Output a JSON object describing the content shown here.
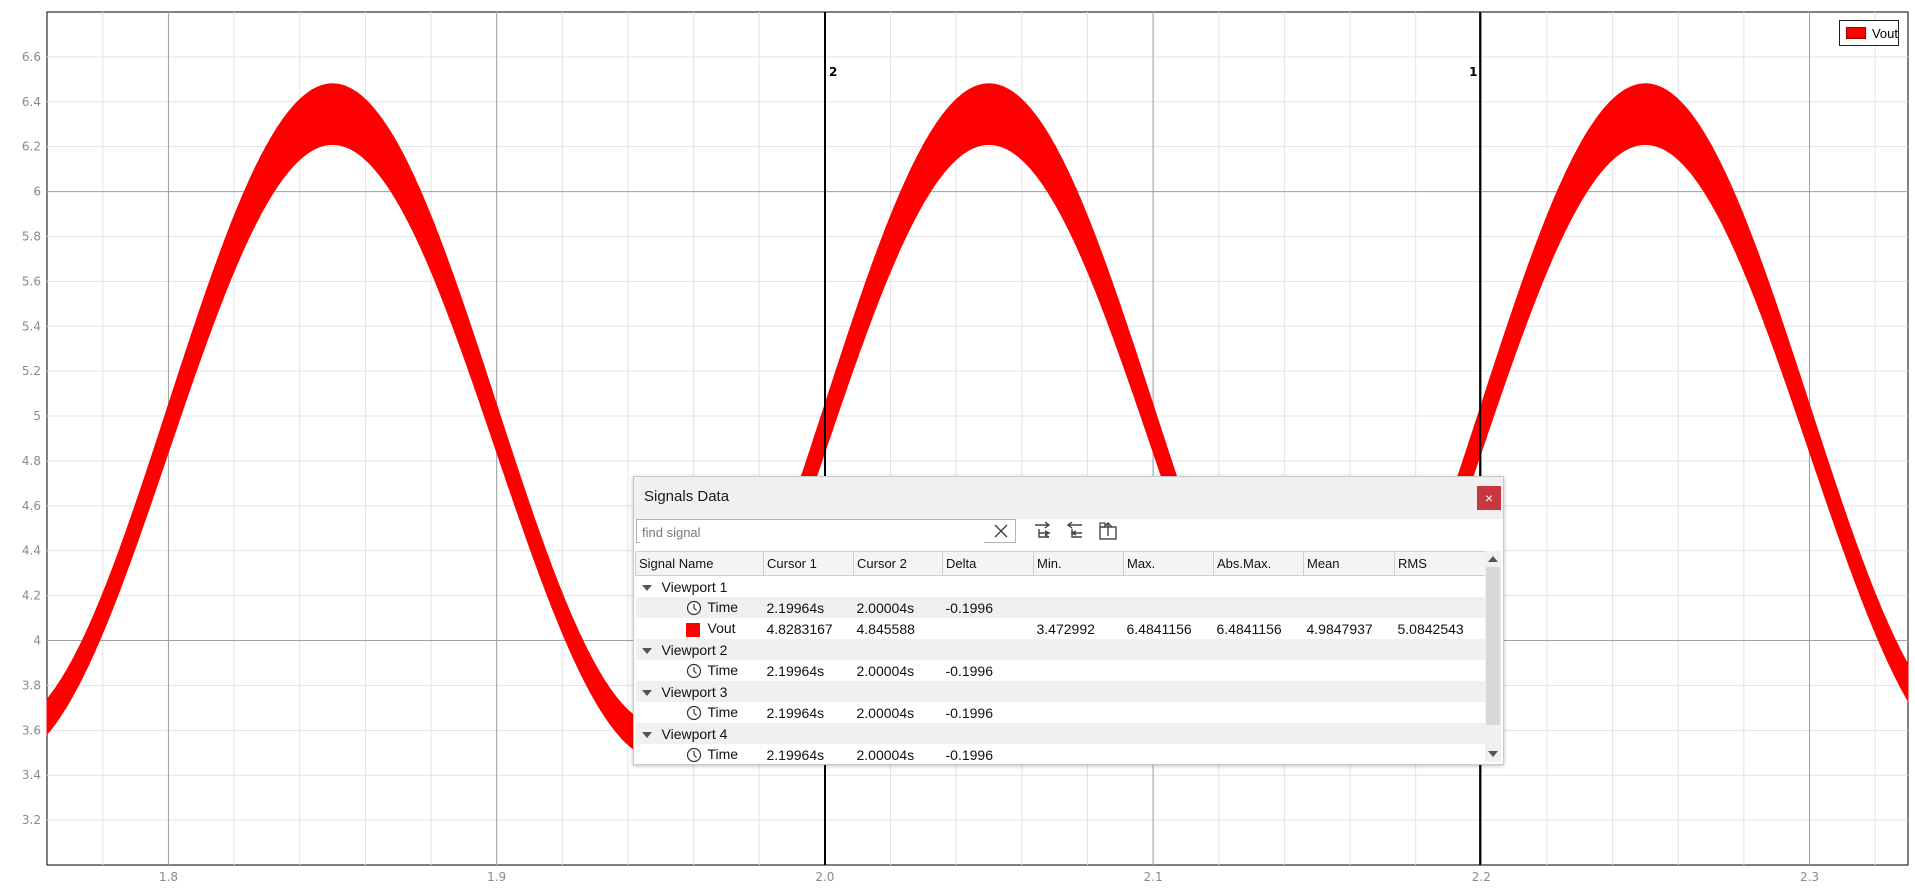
{
  "chart_data": {
    "type": "line",
    "xlim": [
      1.763,
      2.33
    ],
    "ylim": [
      3.0,
      6.8
    ],
    "x_ticks": [
      "1.8",
      "1.9",
      "2.0",
      "2.1",
      "2.2",
      "2.3"
    ],
    "x_tick_values": [
      1.8,
      1.9,
      2.0,
      2.1,
      2.2,
      2.3
    ],
    "y_ticks": [
      "3.2",
      "3.4",
      "3.6",
      "3.8",
      "4",
      "4.2",
      "4.4",
      "4.6",
      "4.8",
      "5",
      "5.2",
      "5.4",
      "5.6",
      "5.8",
      "6",
      "6.2",
      "6.4",
      "6.6"
    ],
    "y_tick_values": [
      3.2,
      3.4,
      3.6,
      3.8,
      4.0,
      4.2,
      4.4,
      4.6,
      4.8,
      5.0,
      5.2,
      5.4,
      5.6,
      5.8,
      6.0,
      6.2,
      6.4,
      6.6
    ],
    "grid": true,
    "legend_position": "top-right",
    "series": [
      {
        "name": "Vout",
        "color": "#ff0000",
        "upper_envelope": {
          "period": 0.2,
          "first_peak_x": 1.85,
          "peak_value": 6.48,
          "trough_value": 3.62
        },
        "lower_envelope": {
          "period": 0.2,
          "first_peak_x": 1.85,
          "peak_value": 6.21,
          "trough_value": 3.47
        }
      }
    ],
    "cursors": [
      {
        "label": "2",
        "x": 2.00004
      },
      {
        "label": "1",
        "x": 2.19964
      }
    ]
  },
  "legend": {
    "label": "Vout",
    "color": "#ff0000"
  },
  "dialog": {
    "title": "Signals Data",
    "close_glyph": "×",
    "search_placeholder": "find signal",
    "search_value": "",
    "columns": [
      "Signal Name",
      "Cursor 1",
      "Cursor 2",
      "Delta",
      "Min.",
      "Max.",
      "Abs.Max.",
      "Mean",
      "RMS"
    ],
    "groups": [
      {
        "name": "Viewport 1",
        "rows": [
          {
            "icon": "clock-icon",
            "name": "Time",
            "cursor1": "2.19964s",
            "cursor2": "2.00004s",
            "delta": "-0.1996",
            "min": "",
            "max": "",
            "absmax": "",
            "mean": "",
            "rms": ""
          },
          {
            "icon": "color-swatch",
            "name": "Vout",
            "cursor1": "4.8283167",
            "cursor2": "4.845588",
            "delta": "",
            "min": "3.472992",
            "max": "6.4841156",
            "absmax": "6.4841156",
            "mean": "4.9847937",
            "rms": "5.0842543"
          }
        ]
      },
      {
        "name": "Viewport 2",
        "rows": [
          {
            "icon": "clock-icon",
            "name": "Time",
            "cursor1": "2.19964s",
            "cursor2": "2.00004s",
            "delta": "-0.1996",
            "min": "",
            "max": "",
            "absmax": "",
            "mean": "",
            "rms": ""
          }
        ]
      },
      {
        "name": "Viewport 3",
        "rows": [
          {
            "icon": "clock-icon",
            "name": "Time",
            "cursor1": "2.19964s",
            "cursor2": "2.00004s",
            "delta": "-0.1996",
            "min": "",
            "max": "",
            "absmax": "",
            "mean": "",
            "rms": ""
          }
        ]
      },
      {
        "name": "Viewport 4",
        "rows": [
          {
            "icon": "clock-icon",
            "name": "Time",
            "cursor1": "2.19964s",
            "cursor2": "2.00004s",
            "delta": "-0.1996",
            "min": "",
            "max": "",
            "absmax": "",
            "mean": "",
            "rms": ""
          }
        ]
      }
    ]
  }
}
